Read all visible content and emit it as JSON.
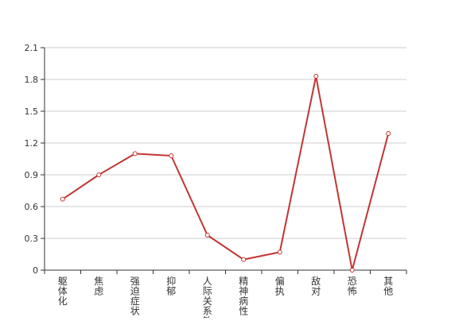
{
  "chart_data": {
    "type": "line",
    "title": "",
    "xlabel": "",
    "ylabel": "",
    "categories": [
      "躯体化",
      "焦虑",
      "强迫症状",
      "抑郁",
      "人际关系敏感",
      "精神病性",
      "偏执",
      "敌对",
      "恐怖",
      "其他"
    ],
    "series": [
      {
        "values": [
          0.67,
          0.9,
          1.1,
          1.08,
          0.33,
          0.1,
          0.17,
          1.83,
          0.0,
          1.29
        ]
      }
    ],
    "ylim": [
      0,
      2.1
    ],
    "yticks": [
      "0",
      "0.3",
      "0.6",
      "0.9",
      "1.2",
      "1.5",
      "1.8",
      "2.1"
    ],
    "grid": true,
    "legend": "none",
    "colors": {
      "line": "#c23531",
      "grid": "#cccccc",
      "axis": "#333333"
    }
  }
}
